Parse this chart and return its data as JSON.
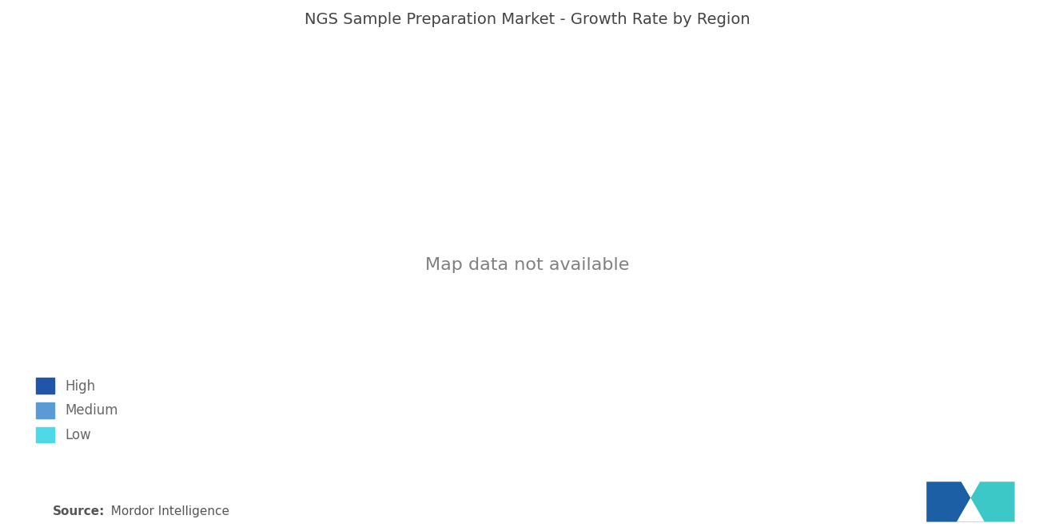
{
  "title": "NGS Sample Preparation Market - Growth Rate by Region",
  "legend_items": [
    "High",
    "Medium",
    "Low"
  ],
  "colors": {
    "high": "#2155A8",
    "medium": "#5B9BD5",
    "low": "#4DD9E8",
    "no_data": "#B0B0B0",
    "background": "#FFFFFF",
    "border": "#FFFFFF"
  },
  "source_bold": "Source:",
  "source_rest": "  Mordor Intelligence",
  "title_fontsize": 14,
  "legend_fontsize": 12,
  "source_fontsize": 11
}
